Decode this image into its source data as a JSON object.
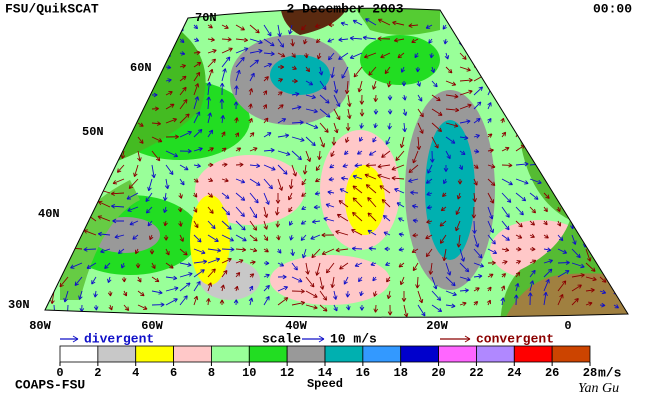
{
  "header": {
    "title": "FSU/QuikSCAT",
    "date": "2 December 2003",
    "time": "00:00"
  },
  "map": {
    "latitude_labels": [
      "70N",
      "60N",
      "50N",
      "40N",
      "30N"
    ],
    "longitude_labels": [
      "80W",
      "60W",
      "40W",
      "20W",
      "0"
    ]
  },
  "legend": {
    "divergent": "divergent",
    "scale": "scale",
    "scale_value": "10 m/s",
    "convergent": "convergent"
  },
  "colorbar": {
    "ticks": [
      0,
      2,
      4,
      6,
      8,
      10,
      12,
      14,
      16,
      18,
      20,
      22,
      24,
      26,
      28
    ],
    "colors": [
      "#ffffff",
      "#c8c8c8",
      "#ffff00",
      "#ffc8c8",
      "#99ff99",
      "#22dd22",
      "#999999",
      "#00b0b0",
      "#3399ff",
      "#0000cc",
      "#ff66ff",
      "#b088ff",
      "#ff0000",
      "#cc4400",
      "#000000"
    ],
    "unit": "m/s",
    "label": "Speed"
  },
  "footer": {
    "source": "COAPS-FSU",
    "author": "Yan Gu"
  }
}
